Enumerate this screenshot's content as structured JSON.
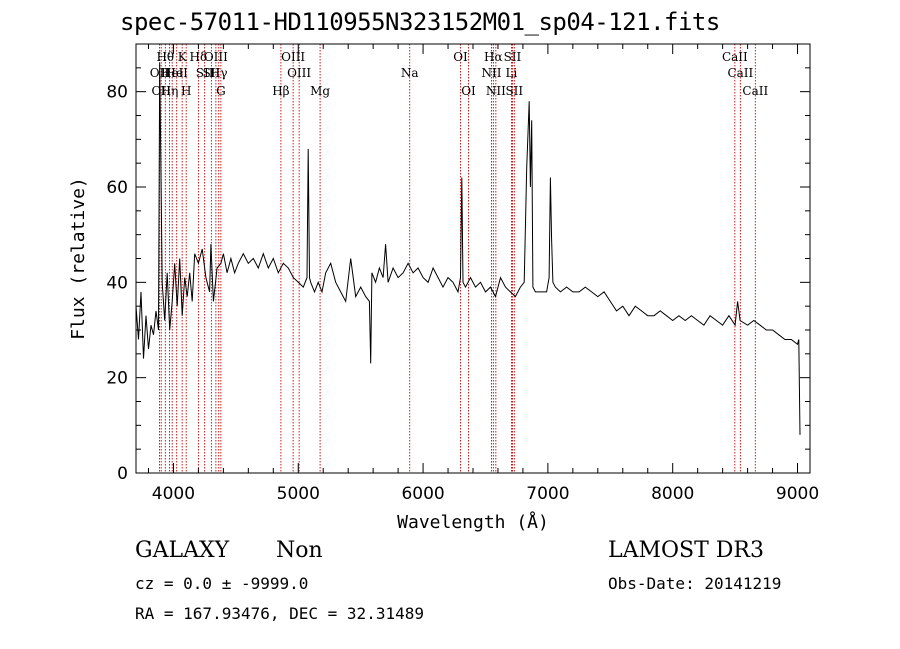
{
  "chart_data": {
    "type": "line",
    "title": "spec-57011-HD110955N323152M01_sp04-121.fits",
    "xlabel": "Wavelength (Å)",
    "ylabel": "Flux (relative)",
    "xlim": [
      3700,
      9100
    ],
    "ylim": [
      0,
      90
    ],
    "xticks": [
      4000,
      5000,
      6000,
      7000,
      8000,
      9000
    ],
    "yticks": [
      0,
      20,
      40,
      60,
      80
    ],
    "series": [
      {
        "name": "spectrum",
        "x": [
          3700,
          3720,
          3740,
          3760,
          3780,
          3800,
          3820,
          3840,
          3860,
          3880,
          3890,
          3900,
          3910,
          3930,
          3950,
          3970,
          3990,
          4010,
          4030,
          4050,
          4070,
          4090,
          4110,
          4130,
          4150,
          4170,
          4200,
          4230,
          4260,
          4290,
          4300,
          4320,
          4350,
          4380,
          4400,
          4430,
          4460,
          4490,
          4520,
          4560,
          4600,
          4640,
          4680,
          4720,
          4760,
          4800,
          4840,
          4880,
          4920,
          4960,
          5000,
          5040,
          5070,
          5080,
          5090,
          5100,
          5130,
          5160,
          5190,
          5220,
          5260,
          5300,
          5340,
          5380,
          5420,
          5460,
          5500,
          5540,
          5570,
          5580,
          5590,
          5620,
          5650,
          5680,
          5700,
          5720,
          5760,
          5800,
          5840,
          5880,
          5920,
          5960,
          6000,
          6040,
          6080,
          6120,
          6160,
          6200,
          6240,
          6280,
          6300,
          6310,
          6320,
          6340,
          6380,
          6420,
          6460,
          6500,
          6540,
          6580,
          6620,
          6660,
          6700,
          6740,
          6780,
          6810,
          6830,
          6850,
          6860,
          6870,
          6880,
          6900,
          6930,
          6960,
          6990,
          7010,
          7020,
          7030,
          7040,
          7060,
          7100,
          7150,
          7200,
          7250,
          7300,
          7350,
          7400,
          7450,
          7500,
          7550,
          7600,
          7650,
          7700,
          7750,
          7800,
          7850,
          7900,
          7950,
          8000,
          8050,
          8100,
          8150,
          8200,
          8250,
          8300,
          8350,
          8400,
          8450,
          8500,
          8520,
          8540,
          8600,
          8650,
          8700,
          8750,
          8800,
          8850,
          8900,
          8950,
          9000,
          9010,
          9020
        ],
        "values": [
          35,
          28,
          38,
          24,
          33,
          26,
          31,
          29,
          34,
          30,
          86,
          62,
          40,
          32,
          42,
          30,
          36,
          44,
          35,
          45,
          33,
          41,
          37,
          42,
          36,
          46,
          44,
          47,
          41,
          38,
          48,
          36,
          43,
          44,
          46,
          42,
          45,
          42,
          44,
          46,
          44,
          45,
          43,
          46,
          43,
          45,
          42,
          44,
          43,
          41,
          40,
          39,
          41,
          68,
          41,
          40,
          38,
          40,
          38,
          42,
          44,
          40,
          38,
          36,
          45,
          37,
          39,
          37,
          36,
          23,
          42,
          40,
          43,
          41,
          48,
          40,
          43,
          41,
          42,
          44,
          42,
          43,
          41,
          40,
          43,
          41,
          39,
          41,
          40,
          38,
          41,
          62,
          40,
          39,
          41,
          39,
          40,
          38,
          39,
          37,
          41,
          39,
          38,
          37,
          39,
          40,
          64,
          78,
          60,
          74,
          39,
          38,
          38,
          38,
          38,
          41,
          62,
          49,
          40,
          39,
          38,
          39,
          38,
          38,
          39,
          38,
          37,
          38,
          36,
          34,
          35,
          33,
          35,
          34,
          33,
          33,
          34,
          33,
          32,
          33,
          32,
          33,
          32,
          31,
          33,
          32,
          31,
          33,
          31,
          36,
          32,
          31,
          32,
          31,
          30,
          30,
          29,
          28,
          28,
          27,
          28,
          8
        ]
      }
    ],
    "lines": [
      {
        "wave": 3888,
        "label": "OII",
        "row": 2
      },
      {
        "wave": 3902,
        "label": "OII",
        "row": 3
      },
      {
        "wave": 3935,
        "label": "Hθ",
        "row": 1
      },
      {
        "wave": 3968,
        "label": "Hη",
        "row": 3
      },
      {
        "wave": 3990,
        "label": "HeI",
        "row": 2
      },
      {
        "wave": 4026,
        "label": "HeI",
        "row": 2
      },
      {
        "wave": 4070,
        "label": "K",
        "row": 1
      },
      {
        "wave": 4102,
        "label": "H",
        "row": 3
      },
      {
        "wave": 4200,
        "label": "Hδ",
        "row": 1
      },
      {
        "wave": 4250,
        "label": "SII",
        "row": 2
      },
      {
        "wave": 4304,
        "label": "SII",
        "row": 2
      },
      {
        "wave": 4340,
        "label": "OIII",
        "row": 1
      },
      {
        "wave": 4363,
        "label": "Hγ",
        "row": 2
      },
      {
        "wave": 4380,
        "label": "G",
        "row": 3
      },
      {
        "wave": 4861,
        "label": "Hβ",
        "row": 3
      },
      {
        "wave": 4959,
        "label": "OIII",
        "row": 1
      },
      {
        "wave": 5007,
        "label": "OIII",
        "row": 2
      },
      {
        "wave": 5175,
        "label": "Mg",
        "row": 3
      },
      {
        "wave": 5893,
        "label": "Na",
        "row": 2
      },
      {
        "wave": 6300,
        "label": "OI",
        "row": 1
      },
      {
        "wave": 6364,
        "label": "OI",
        "row": 3
      },
      {
        "wave": 6548,
        "label": "NII",
        "row": 2
      },
      {
        "wave": 6563,
        "label": "Hα",
        "row": 1
      },
      {
        "wave": 6583,
        "label": "NII",
        "row": 3
      },
      {
        "wave": 6716,
        "label": "SII",
        "row": 1
      },
      {
        "wave": 6708,
        "label": "Li",
        "row": 2
      },
      {
        "wave": 6731,
        "label": "SII",
        "row": 3
      },
      {
        "wave": 8498,
        "label": "CaII",
        "row": 1
      },
      {
        "wave": 8542,
        "label": "CaII",
        "row": 2
      },
      {
        "wave": 8662,
        "label": "CaII",
        "row": 3
      }
    ]
  },
  "info": {
    "class": "GALAXY",
    "subclass": "Non",
    "cz": "cz = 0.0 ± -9999.0",
    "coords": "RA = 167.93476, DEC =  32.31489",
    "survey": "LAMOST DR3",
    "obs_date": "Obs-Date: 20141219"
  },
  "colors": {
    "line_marker": "#cc0000",
    "spectrum": "#000000"
  }
}
